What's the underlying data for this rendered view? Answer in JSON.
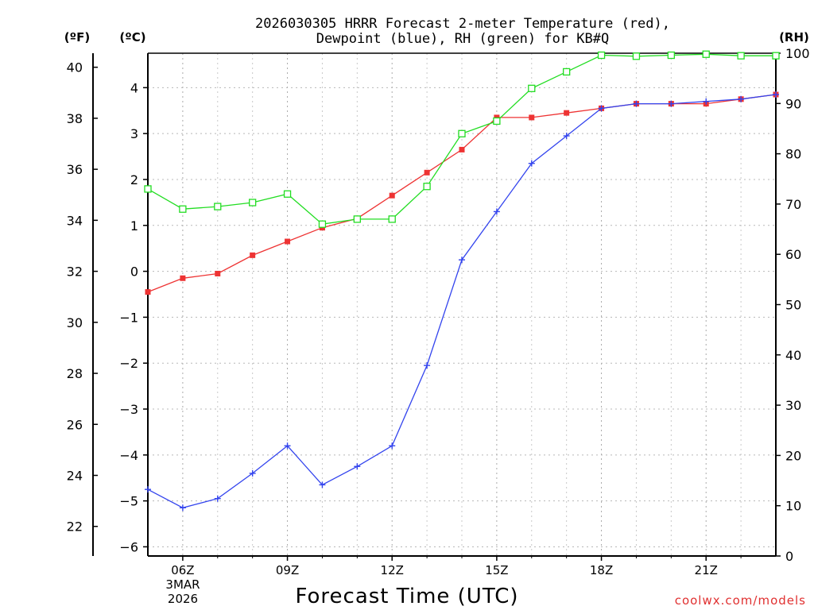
{
  "chart_data": {
    "type": "line",
    "title_line1": "2026030305 HRRR Forecast 2-meter Temperature (red),",
    "title_line2": "Dewpoint (blue), RH (green) for KB#Q",
    "xlabel": "Forecast Time (UTC)",
    "axis_unit_f": "(ºF)",
    "axis_unit_c": "(ºC)",
    "axis_unit_rh": "(RH)",
    "watermark": "coolwx.com/models",
    "x_hours": [
      5,
      6,
      7,
      8,
      9,
      10,
      11,
      12,
      13,
      14,
      15,
      16,
      17,
      18,
      19,
      20,
      21,
      22,
      23
    ],
    "x_range": [
      5,
      23
    ],
    "x_ticks": [
      {
        "hour": 6,
        "label": "06Z"
      },
      {
        "hour": 9,
        "label": "09Z"
      },
      {
        "hour": 12,
        "label": "12Z"
      },
      {
        "hour": 15,
        "label": "15Z"
      },
      {
        "hour": 18,
        "label": "18Z"
      },
      {
        "hour": 21,
        "label": "21Z"
      }
    ],
    "date_label_line1": "3MAR",
    "date_label_line2": "2026",
    "celsius_range": [
      -6.2,
      4.75
    ],
    "celsius_ticks": [
      -6,
      -5,
      -4,
      -3,
      -2,
      -1,
      0,
      1,
      2,
      3,
      4
    ],
    "fahrenheit_ticks": [
      22,
      24,
      26,
      28,
      30,
      32,
      34,
      36,
      38,
      40
    ],
    "rh_range": [
      0,
      100
    ],
    "rh_ticks": [
      0,
      10,
      20,
      30,
      40,
      50,
      60,
      70,
      80,
      90,
      100
    ],
    "series": [
      {
        "name": "Temperature",
        "color": "#ee3333",
        "marker": "filled-square",
        "axis": "celsius",
        "values": [
          -0.45,
          -0.15,
          -0.05,
          0.35,
          0.65,
          0.95,
          1.15,
          1.65,
          2.15,
          2.65,
          3.35,
          3.35,
          3.45,
          3.55,
          3.65,
          3.65,
          3.65,
          3.75,
          3.85
        ]
      },
      {
        "name": "Dewpoint",
        "color": "#3344ee",
        "marker": "plus",
        "axis": "celsius",
        "values": [
          -4.75,
          -5.15,
          -4.95,
          -4.4,
          -3.8,
          -4.65,
          -4.25,
          -3.8,
          -2.05,
          0.25,
          1.3,
          2.35,
          2.95,
          3.55,
          3.65,
          3.65,
          3.7,
          3.75,
          3.85
        ]
      },
      {
        "name": "RH",
        "color": "#22dd22",
        "marker": "open-square",
        "axis": "rh",
        "values": [
          73,
          69,
          69.5,
          70.3,
          72,
          66,
          67,
          67,
          73.5,
          84,
          86.5,
          93,
          96.3,
          99.6,
          99.4,
          99.6,
          99.8,
          99.5,
          99.5
        ]
      }
    ]
  }
}
